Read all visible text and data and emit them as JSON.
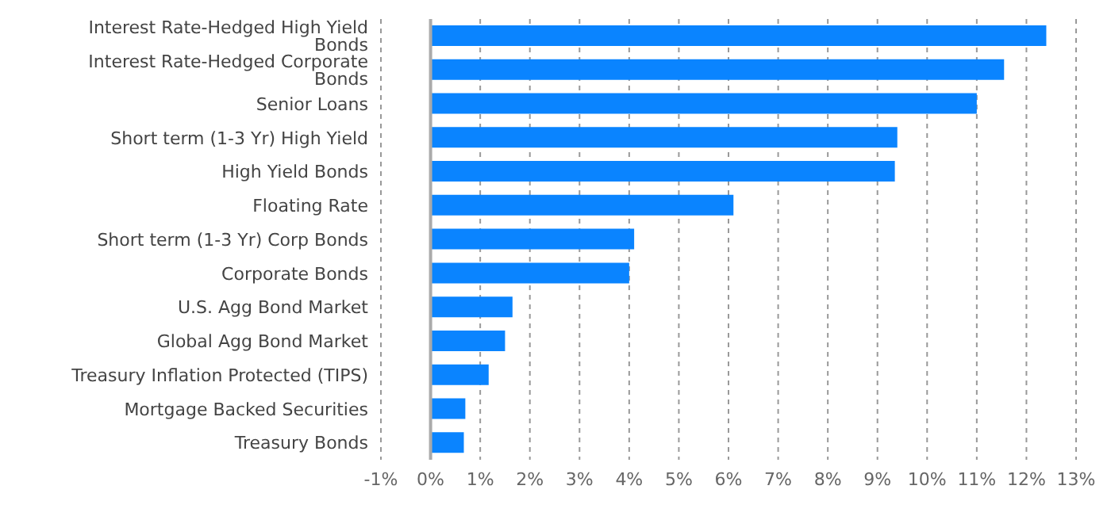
{
  "chart_data": {
    "type": "bar",
    "orientation": "horizontal",
    "categories": [
      "Interest Rate-Hedged High Yield Bonds",
      "Interest Rate-Hedged Corporate Bonds",
      "Senior Loans",
      "Short term (1-3 Yr) High Yield",
      "High Yield Bonds",
      "Floating Rate",
      "Short term (1-3 Yr) Corp Bonds",
      "Corporate Bonds",
      "U.S. Agg Bond Market",
      "Global Agg Bond Market",
      "Treasury Inflation Protected (TIPS)",
      "Mortgage Backed Securities",
      "Treasury Bonds"
    ],
    "values": [
      12.4,
      11.55,
      11.0,
      9.4,
      9.35,
      6.1,
      4.1,
      4.0,
      1.65,
      1.5,
      1.17,
      0.7,
      0.67
    ],
    "color": "#0a84ff",
    "xlim": [
      -1,
      13
    ],
    "xticks": [
      {
        "value": -1,
        "label": "-1%"
      },
      {
        "value": 0,
        "label": "0%"
      },
      {
        "value": 1,
        "label": "1%"
      },
      {
        "value": 2,
        "label": "2%"
      },
      {
        "value": 3,
        "label": "3%"
      },
      {
        "value": 4,
        "label": "4%"
      },
      {
        "value": 5,
        "label": "5%"
      },
      {
        "value": 6,
        "label": "6%"
      },
      {
        "value": 7,
        "label": "7%"
      },
      {
        "value": 8,
        "label": "8%"
      },
      {
        "value": 9,
        "label": "9%"
      },
      {
        "value": 10,
        "label": "10%"
      },
      {
        "value": 11,
        "label": "11%"
      },
      {
        "value": 12,
        "label": "12%"
      },
      {
        "value": 13,
        "label": "13%"
      }
    ],
    "grid": "x",
    "ref_lines": [
      {
        "axis": "x",
        "value": 0,
        "color": "#aaaaaa",
        "line_style": "solid"
      }
    ],
    "legend": false
  }
}
